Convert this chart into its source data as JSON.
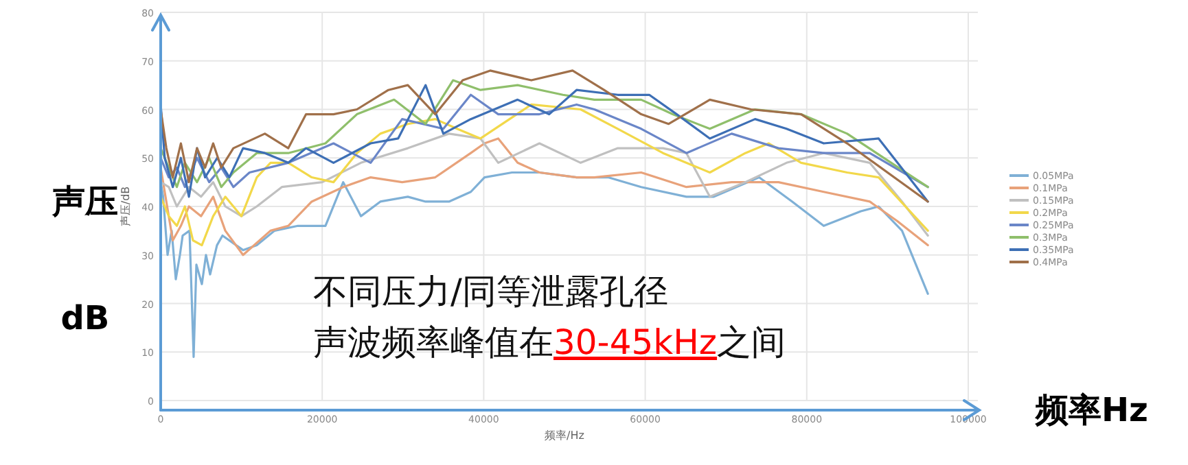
{
  "chart_data": {
    "type": "line",
    "xlabel": "频率/Hz",
    "ylabel": "声压/dB",
    "annotations": [
      "声压",
      "dB",
      "频率Hz",
      "不同压力/同等泄露孔径",
      "声波频率峰值在",
      "30-45kHz",
      "之间"
    ],
    "xlim": [
      0,
      100000
    ],
    "ylim": [
      0,
      80
    ],
    "xticks": [
      0,
      20000,
      40000,
      60000,
      80000,
      100000
    ],
    "yticks": [
      0,
      10,
      20,
      30,
      40,
      50,
      60,
      70,
      80
    ],
    "grid": true,
    "legend": "right",
    "series": [
      {
        "name": "0.05MPa",
        "color": "#7fb0d6",
        "x": [
          0,
          300,
          850,
          1360,
          1870,
          2380,
          2720,
          3570,
          4080,
          4420,
          5100,
          5610,
          6120,
          6970,
          7650,
          10200,
          11900,
          14100,
          17000,
          20400,
          22600,
          24800,
          27200,
          30600,
          32800,
          35700,
          38400,
          40100,
          43500,
          46900,
          51500,
          55400,
          59500,
          65100,
          68500,
          74100,
          78200,
          82100,
          86700,
          88900,
          91800,
          95000
        ],
        "values": [
          45,
          42,
          30,
          35,
          25,
          30,
          34,
          35,
          9,
          28,
          24,
          30,
          26,
          32,
          34,
          31,
          32,
          35,
          36,
          36,
          45,
          38,
          41,
          42,
          41,
          41,
          43,
          46,
          47,
          47,
          46,
          46,
          44,
          42,
          42,
          46,
          41,
          36,
          39,
          40,
          35,
          22
        ]
      },
      {
        "name": "0.1MPa",
        "color": "#e8a27a",
        "x": [
          0,
          1000,
          1500,
          2500,
          3500,
          5000,
          6500,
          8000,
          10200,
          13600,
          15800,
          18700,
          22600,
          26000,
          29900,
          34000,
          38400,
          40100,
          41800,
          44200,
          46900,
          51500,
          53700,
          59500,
          65100,
          70700,
          76500,
          82100,
          87800,
          91200,
          95000
        ],
        "values": [
          48,
          38,
          33,
          36,
          40,
          38,
          42,
          35,
          30,
          35,
          36,
          41,
          44,
          46,
          45,
          46,
          51,
          53,
          54,
          49,
          47,
          46,
          46,
          47,
          44,
          45,
          45,
          43,
          41,
          37,
          32
        ]
      },
      {
        "name": "0.15MPa",
        "color": "#c0c0c0",
        "x": [
          0,
          1000,
          2000,
          3500,
          5000,
          6500,
          8000,
          10000,
          11900,
          15000,
          20000,
          24800,
          30600,
          35700,
          39600,
          41800,
          46900,
          52000,
          56600,
          62200,
          65100,
          68000,
          72400,
          77500,
          82100,
          87800,
          91800,
          95000
        ],
        "values": [
          45,
          44,
          40,
          44,
          42,
          45,
          40,
          38,
          40,
          44,
          45,
          49,
          52,
          55,
          54,
          49,
          53,
          49,
          52,
          52,
          51,
          42,
          45,
          49,
          51,
          49,
          41,
          34
        ]
      },
      {
        "name": "0.2MPa",
        "color": "#f2d84a",
        "x": [
          0,
          1000,
          2000,
          3000,
          4000,
          5100,
          6500,
          8000,
          10000,
          11900,
          13600,
          15800,
          18700,
          21400,
          24300,
          27200,
          30600,
          34000,
          36700,
          39600,
          45900,
          52000,
          56600,
          62200,
          68000,
          72400,
          75300,
          79300,
          85000,
          88900,
          95000
        ],
        "values": [
          42,
          38,
          36,
          40,
          33,
          32,
          38,
          42,
          38,
          46,
          49,
          49,
          46,
          45,
          51,
          55,
          57,
          58,
          56,
          54,
          61,
          60,
          56,
          51,
          47,
          51,
          53,
          49,
          47,
          46,
          35
        ]
      },
      {
        "name": "0.25MPa",
        "color": "#6a86c8",
        "x": [
          0,
          1000,
          2000,
          3000,
          4500,
          6000,
          7500,
          9000,
          11000,
          15800,
          21400,
          26000,
          29900,
          35000,
          38400,
          41800,
          46900,
          51500,
          53700,
          59500,
          65100,
          70700,
          76500,
          82100,
          87800,
          95000
        ],
        "values": [
          50,
          46,
          48,
          44,
          50,
          45,
          48,
          44,
          47,
          49,
          53,
          49,
          58,
          56,
          63,
          59,
          59,
          61,
          60,
          56,
          51,
          55,
          52,
          51,
          51,
          44
        ]
      },
      {
        "name": "0.3MPa",
        "color": "#8fbf6b",
        "x": [
          0,
          1000,
          2000,
          3000,
          4500,
          6000,
          7500,
          9000,
          11900,
          15800,
          20400,
          24300,
          28900,
          32800,
          36200,
          39600,
          44200,
          49800,
          53700,
          59500,
          63400,
          68000,
          73600,
          79300,
          85000,
          95000
        ],
        "values": [
          52,
          48,
          44,
          49,
          45,
          50,
          44,
          47,
          51,
          51,
          53,
          59,
          62,
          57,
          66,
          64,
          65,
          63,
          62,
          62,
          59,
          56,
          60,
          59,
          55,
          44
        ]
      },
      {
        "name": "0.35MPa",
        "color": "#3d6fb5",
        "x": [
          0,
          500,
          1500,
          2500,
          3500,
          4500,
          5500,
          7000,
          8500,
          10200,
          12900,
          15800,
          18000,
          21400,
          26000,
          29400,
          32800,
          35000,
          38400,
          44200,
          48100,
          51500,
          56600,
          60500,
          63900,
          68000,
          73600,
          77500,
          82100,
          88900,
          95000
        ],
        "values": [
          61,
          50,
          44,
          50,
          42,
          52,
          46,
          50,
          46,
          52,
          51,
          49,
          52,
          49,
          53,
          54,
          65,
          55,
          58,
          62,
          59,
          64,
          63,
          63,
          59,
          54,
          58,
          56,
          53,
          54,
          41
        ]
      },
      {
        "name": "0.4MPa",
        "color": "#a0704a",
        "x": [
          0,
          700,
          1500,
          2500,
          3500,
          4500,
          5500,
          6500,
          7500,
          9000,
          12900,
          15800,
          18000,
          21400,
          24300,
          28200,
          30600,
          34000,
          37400,
          40800,
          45900,
          51000,
          54900,
          59500,
          62900,
          68000,
          73100,
          79300,
          85000,
          95000
        ],
        "values": [
          60,
          52,
          46,
          53,
          45,
          52,
          48,
          53,
          48,
          52,
          55,
          52,
          59,
          59,
          60,
          64,
          65,
          59,
          66,
          68,
          66,
          68,
          64,
          59,
          57,
          62,
          60,
          59,
          53,
          41
        ]
      }
    ]
  }
}
